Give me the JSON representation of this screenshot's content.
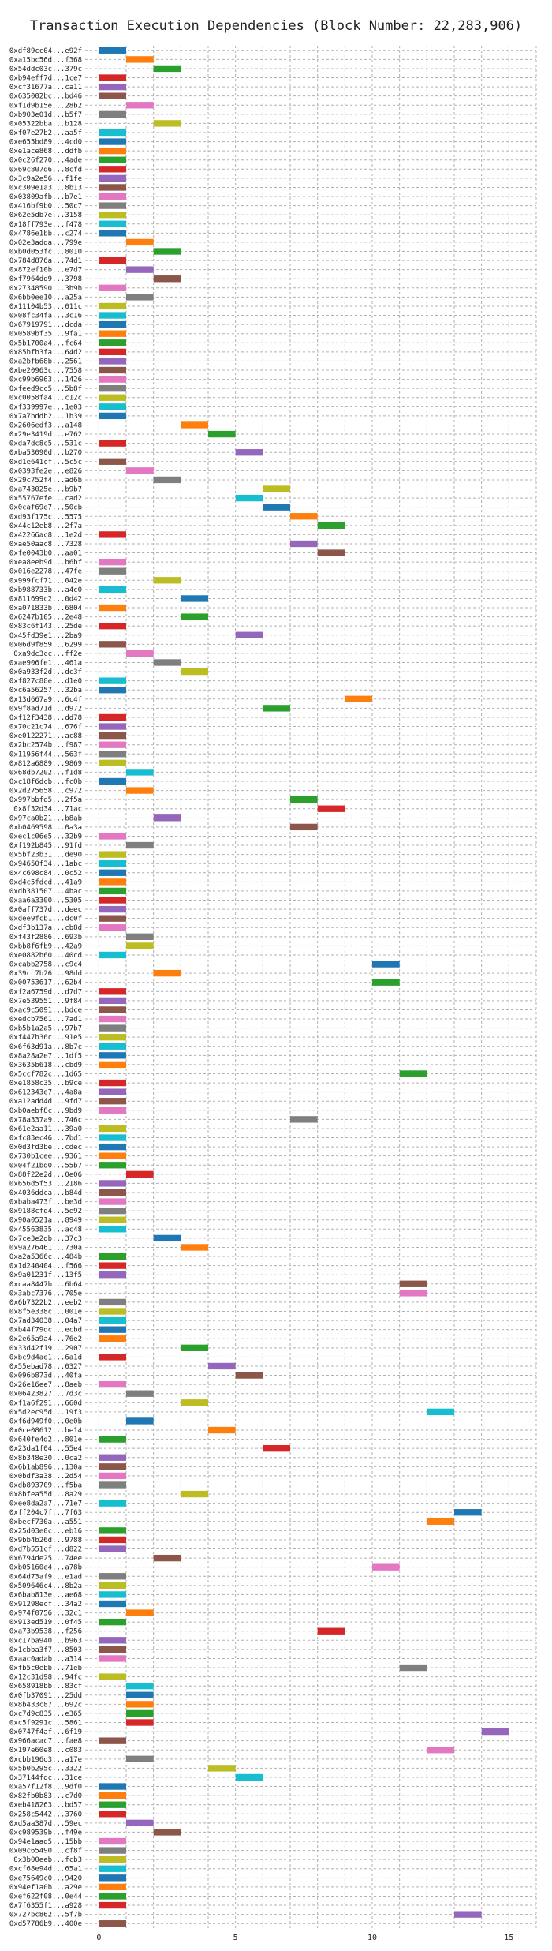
{
  "chart_data": {
    "type": "bar",
    "title": "Transaction Execution Dependencies (Block Number: 22,283,906)",
    "xlabel": "",
    "ylabel": "",
    "xlim": [
      -0.5,
      16
    ],
    "xticks": [
      0,
      5,
      10,
      15
    ],
    "grid": true,
    "bar_colors": [
      "#1f77b4",
      "#ff7f0e",
      "#2ca02c",
      "#d62728",
      "#9467bd",
      "#8c564b",
      "#e377c2",
      "#7f7f7f",
      "#bcbd22",
      "#17becf"
    ],
    "transactions": [
      {
        "hash": "0xdf89cc04...e92f",
        "start": 0,
        "end": 1
      },
      {
        "hash": "0xa15bc56d...f368",
        "start": 1,
        "end": 2
      },
      {
        "hash": "0x54ddc03c...379c",
        "start": 2,
        "end": 3
      },
      {
        "hash": "0xb94eff7d...1ce7",
        "start": 0,
        "end": 1
      },
      {
        "hash": "0xcf31677a...ca11",
        "start": 0,
        "end": 1
      },
      {
        "hash": "0x635002bc...bd46",
        "start": 0,
        "end": 1
      },
      {
        "hash": "0xf1d9b15e...28b2",
        "start": 1,
        "end": 2
      },
      {
        "hash": "0xb903e01d...b5f7",
        "start": 0,
        "end": 1
      },
      {
        "hash": "0x05322bba...b128",
        "start": 2,
        "end": 3
      },
      {
        "hash": "0xf07e27b2...aa5f",
        "start": 0,
        "end": 1
      },
      {
        "hash": "0xe655bd89...4cd0",
        "start": 0,
        "end": 1
      },
      {
        "hash": "0xe1ace868...ddfb",
        "start": 0,
        "end": 1
      },
      {
        "hash": "0x0c26f270...4ade",
        "start": 0,
        "end": 1
      },
      {
        "hash": "0x69c807d6...8cfd",
        "start": 0,
        "end": 1
      },
      {
        "hash": "0x3c9a2e56...f1fe",
        "start": 0,
        "end": 1
      },
      {
        "hash": "0xc309e1a3...8b13",
        "start": 0,
        "end": 1
      },
      {
        "hash": "0x03809afb...b7e1",
        "start": 0,
        "end": 1
      },
      {
        "hash": "0x416bf9b0...50c7",
        "start": 0,
        "end": 1
      },
      {
        "hash": "0x62e5db7e...3158",
        "start": 0,
        "end": 1
      },
      {
        "hash": "0x18ff793e...f478",
        "start": 0,
        "end": 1
      },
      {
        "hash": "0x4786e1bb...c274",
        "start": 0,
        "end": 1
      },
      {
        "hash": "0x02e3adda...799e",
        "start": 1,
        "end": 2
      },
      {
        "hash": "0xb0d053fc...8010",
        "start": 2,
        "end": 3
      },
      {
        "hash": "0x784d876a...74d1",
        "start": 0,
        "end": 1
      },
      {
        "hash": "0x872ef10b...e7d7",
        "start": 1,
        "end": 2
      },
      {
        "hash": "0xf7964dd9...3798",
        "start": 2,
        "end": 3
      },
      {
        "hash": "0x27348590...3b9b",
        "start": 0,
        "end": 1
      },
      {
        "hash": "0x6bb0ee10...a25a",
        "start": 1,
        "end": 2
      },
      {
        "hash": "0x11104b53...011c",
        "start": 0,
        "end": 1
      },
      {
        "hash": "0x08fc34fa...3c16",
        "start": 0,
        "end": 1
      },
      {
        "hash": "0x67919791...dcda",
        "start": 0,
        "end": 1
      },
      {
        "hash": "0x0589bf35...9fa1",
        "start": 0,
        "end": 1
      },
      {
        "hash": "0x5b1700a4...fc64",
        "start": 0,
        "end": 1
      },
      {
        "hash": "0x85bfb3fa...64d2",
        "start": 0,
        "end": 1
      },
      {
        "hash": "0xa2bfb68b...2561",
        "start": 0,
        "end": 1
      },
      {
        "hash": "0xbe20963c...7558",
        "start": 0,
        "end": 1
      },
      {
        "hash": "0xc99b6963...1426",
        "start": 0,
        "end": 1
      },
      {
        "hash": "0xfeed9cc5...5b8f",
        "start": 0,
        "end": 1
      },
      {
        "hash": "0xc0058fa4...c12c",
        "start": 0,
        "end": 1
      },
      {
        "hash": "0xf339997e...1e03",
        "start": 0,
        "end": 1
      },
      {
        "hash": "0x7a7bddb2...1b39",
        "start": 0,
        "end": 1
      },
      {
        "hash": "0x2606edf3...a148",
        "start": 3,
        "end": 4
      },
      {
        "hash": "0x29e3419d...e762",
        "start": 4,
        "end": 5
      },
      {
        "hash": "0xda7dc8c5...531c",
        "start": 0,
        "end": 1
      },
      {
        "hash": "0xba53090d...b270",
        "start": 5,
        "end": 6
      },
      {
        "hash": "0xd1e641cf...5c5c",
        "start": 0,
        "end": 1
      },
      {
        "hash": "0x0393fe2e...e826",
        "start": 1,
        "end": 2
      },
      {
        "hash": "0x29c752f4...ad6b",
        "start": 2,
        "end": 3
      },
      {
        "hash": "0xa743025e...b9b7",
        "start": 6,
        "end": 7
      },
      {
        "hash": "0x55767efe...cad2",
        "start": 5,
        "end": 6
      },
      {
        "hash": "0x0caf69e7...50cb",
        "start": 6,
        "end": 7
      },
      {
        "hash": "0xd93f175c...5575",
        "start": 7,
        "end": 8
      },
      {
        "hash": "0x44c12eb8...2f7a",
        "start": 8,
        "end": 9
      },
      {
        "hash": "0x42266ac8...1e2d",
        "start": 0,
        "end": 1
      },
      {
        "hash": "0xae50aac8...7328",
        "start": 7,
        "end": 8
      },
      {
        "hash": "0xfe0043b0...aa01",
        "start": 8,
        "end": 9
      },
      {
        "hash": "0xea8eeb9d...b6bf",
        "start": 0,
        "end": 1
      },
      {
        "hash": "0x016e2278...47fe",
        "start": 0,
        "end": 1
      },
      {
        "hash": "0x999fcf71...042e",
        "start": 2,
        "end": 3
      },
      {
        "hash": "0xb988733b...a4c0",
        "start": 0,
        "end": 1
      },
      {
        "hash": "0x811699c2...0d42",
        "start": 3,
        "end": 4
      },
      {
        "hash": "0xa071833b...6804",
        "start": 0,
        "end": 1
      },
      {
        "hash": "0x6247b105...2e48",
        "start": 3,
        "end": 4
      },
      {
        "hash": "0x83c6f143...25de",
        "start": 0,
        "end": 1
      },
      {
        "hash": "0x45fd39e1...2ba9",
        "start": 5,
        "end": 6
      },
      {
        "hash": "0x06d9f859...6299",
        "start": 0,
        "end": 1
      },
      {
        "hash": "0xa9dc3cc...ff2e",
        "start": 1,
        "end": 2
      },
      {
        "hash": "0xae906fe1...461a",
        "start": 2,
        "end": 3
      },
      {
        "hash": "0x0a933f2d...dc3f",
        "start": 3,
        "end": 4
      },
      {
        "hash": "0xf827c88e...d1e0",
        "start": 0,
        "end": 1
      },
      {
        "hash": "0xc6a56257...32ba",
        "start": 0,
        "end": 1
      },
      {
        "hash": "0x13d667a9...6c4f",
        "start": 9,
        "end": 10
      },
      {
        "hash": "0x9f8ad71d...d972",
        "start": 6,
        "end": 7
      },
      {
        "hash": "0xf12f3438...dd78",
        "start": 0,
        "end": 1
      },
      {
        "hash": "0x70c21c74...676f",
        "start": 0,
        "end": 1
      },
      {
        "hash": "0xe0122271...ac88",
        "start": 0,
        "end": 1
      },
      {
        "hash": "0x2bc2574b...f987",
        "start": 0,
        "end": 1
      },
      {
        "hash": "0x11956f44...563f",
        "start": 0,
        "end": 1
      },
      {
        "hash": "0x812a6889...9869",
        "start": 0,
        "end": 1
      },
      {
        "hash": "0x68db7202...f1d8",
        "start": 1,
        "end": 2
      },
      {
        "hash": "0xc18f6dcb...fc0b",
        "start": 0,
        "end": 1
      },
      {
        "hash": "0x2d275658...c972",
        "start": 1,
        "end": 2
      },
      {
        "hash": "0x997bbfd5...2f5a",
        "start": 7,
        "end": 8
      },
      {
        "hash": "0x8f32d34...71ac",
        "start": 8,
        "end": 9
      },
      {
        "hash": "0x97ca0b21...b8ab",
        "start": 2,
        "end": 3
      },
      {
        "hash": "0xb0469598...0a3a",
        "start": 7,
        "end": 8
      },
      {
        "hash": "0xec1c06e5...32b9",
        "start": 0,
        "end": 1
      },
      {
        "hash": "0xf192b845...91fd",
        "start": 1,
        "end": 2
      },
      {
        "hash": "0x5bf23b31...de90",
        "start": 0,
        "end": 1
      },
      {
        "hash": "0x94650f34...1abc",
        "start": 0,
        "end": 1
      },
      {
        "hash": "0x4c698c84...0c52",
        "start": 0,
        "end": 1
      },
      {
        "hash": "0xd4c5fdcd...41a9",
        "start": 0,
        "end": 1
      },
      {
        "hash": "0xdb381507...4bac",
        "start": 0,
        "end": 1
      },
      {
        "hash": "0xaa6a3300...5305",
        "start": 0,
        "end": 1
      },
      {
        "hash": "0x0aff737d...deec",
        "start": 0,
        "end": 1
      },
      {
        "hash": "0xdee9fcb1...dc0f",
        "start": 0,
        "end": 1
      },
      {
        "hash": "0xdf3b137a...cb8d",
        "start": 0,
        "end": 1
      },
      {
        "hash": "0xf43f2886...693b",
        "start": 1,
        "end": 2
      },
      {
        "hash": "0xbb8f6fb9...42a9",
        "start": 1,
        "end": 2
      },
      {
        "hash": "0xe0882b60...40cd",
        "start": 0,
        "end": 1
      },
      {
        "hash": "0xcabb2758...c9c4",
        "start": 10,
        "end": 11
      },
      {
        "hash": "0x39cc7b26...98dd",
        "start": 2,
        "end": 3
      },
      {
        "hash": "0x00753617...62b4",
        "start": 10,
        "end": 11
      },
      {
        "hash": "0xf2a6759d...d7d7",
        "start": 0,
        "end": 1
      },
      {
        "hash": "0x7e539551...9f84",
        "start": 0,
        "end": 1
      },
      {
        "hash": "0xac9c5091...bdce",
        "start": 0,
        "end": 1
      },
      {
        "hash": "0xedcb7561...7ad1",
        "start": 0,
        "end": 1
      },
      {
        "hash": "0xb5b1a2a5...97b7",
        "start": 0,
        "end": 1
      },
      {
        "hash": "0xf447b36c...91e5",
        "start": 0,
        "end": 1
      },
      {
        "hash": "0x6f63d91a...8b7c",
        "start": 0,
        "end": 1
      },
      {
        "hash": "0x8a28a2e7...1df5",
        "start": 0,
        "end": 1
      },
      {
        "hash": "0x3635b618...cbd9",
        "start": 0,
        "end": 1
      },
      {
        "hash": "0x5ccf782c...1d65",
        "start": 11,
        "end": 12
      },
      {
        "hash": "0xe1858c35...b9ce",
        "start": 0,
        "end": 1
      },
      {
        "hash": "0x612343e7...4a8a",
        "start": 0,
        "end": 1
      },
      {
        "hash": "0xa12add4d...9fd7",
        "start": 0,
        "end": 1
      },
      {
        "hash": "0xb0aebf8c...9bd9",
        "start": 0,
        "end": 1
      },
      {
        "hash": "0x78a337a9...746c",
        "start": 7,
        "end": 8
      },
      {
        "hash": "0x61e2aa11...39a0",
        "start": 0,
        "end": 1
      },
      {
        "hash": "0xfc83ec46...7bd1",
        "start": 0,
        "end": 1
      },
      {
        "hash": "0x0d3fd3be...cdec",
        "start": 0,
        "end": 1
      },
      {
        "hash": "0x730b1cee...9361",
        "start": 0,
        "end": 1
      },
      {
        "hash": "0x04f21bd0...55b7",
        "start": 0,
        "end": 1
      },
      {
        "hash": "0x88f22e2d...0e06",
        "start": 1,
        "end": 2
      },
      {
        "hash": "0x656d5f53...2186",
        "start": 0,
        "end": 1
      },
      {
        "hash": "0x4036ddca...b84d",
        "start": 0,
        "end": 1
      },
      {
        "hash": "0xbaba473f...be3d",
        "start": 0,
        "end": 1
      },
      {
        "hash": "0x9188cfd4...5e92",
        "start": 0,
        "end": 1
      },
      {
        "hash": "0x90a0521a...8949",
        "start": 0,
        "end": 1
      },
      {
        "hash": "0x45563835...ac48",
        "start": 0,
        "end": 1
      },
      {
        "hash": "0x7ce3e2db...37c3",
        "start": 2,
        "end": 3
      },
      {
        "hash": "0x9a276461...730a",
        "start": 3,
        "end": 4
      },
      {
        "hash": "0xa2a5366c...484b",
        "start": 0,
        "end": 1
      },
      {
        "hash": "0x1d240404...f566",
        "start": 0,
        "end": 1
      },
      {
        "hash": "0x9a01231f...13f5",
        "start": 0,
        "end": 1
      },
      {
        "hash": "0xcaa8447b...6b64",
        "start": 11,
        "end": 12
      },
      {
        "hash": "0x3abc7376...705e",
        "start": 11,
        "end": 12
      },
      {
        "hash": "0x6b7322b2...eeb2",
        "start": 0,
        "end": 1
      },
      {
        "hash": "0x8f5e338c...001e",
        "start": 0,
        "end": 1
      },
      {
        "hash": "0x7ad34038...04a7",
        "start": 0,
        "end": 1
      },
      {
        "hash": "0xb44f79dc...ecbd",
        "start": 0,
        "end": 1
      },
      {
        "hash": "0x2e65a9a4...76e2",
        "start": 0,
        "end": 1
      },
      {
        "hash": "0x33d42f19...2907",
        "start": 3,
        "end": 4
      },
      {
        "hash": "0xbc9d4ae1...6a1d",
        "start": 0,
        "end": 1
      },
      {
        "hash": "0x55ebad78...0327",
        "start": 4,
        "end": 5
      },
      {
        "hash": "0x096b873d...40fa",
        "start": 5,
        "end": 6
      },
      {
        "hash": "0x26e16ee7...8aeb",
        "start": 0,
        "end": 1
      },
      {
        "hash": "0x06423827...7d3c",
        "start": 1,
        "end": 2
      },
      {
        "hash": "0xf1a6f291...660d",
        "start": 3,
        "end": 4
      },
      {
        "hash": "0x5d2ec95d...19f3",
        "start": 12,
        "end": 13
      },
      {
        "hash": "0xf6d949f0...0e0b",
        "start": 1,
        "end": 2
      },
      {
        "hash": "0x0ce08612...be14",
        "start": 4,
        "end": 5
      },
      {
        "hash": "0x640fe4d2...801e",
        "start": 0,
        "end": 1
      },
      {
        "hash": "0x23da1f04...55e4",
        "start": 6,
        "end": 7
      },
      {
        "hash": "0x8b348e30...0ca2",
        "start": 0,
        "end": 1
      },
      {
        "hash": "0x6b1ab896...130a",
        "start": 0,
        "end": 1
      },
      {
        "hash": "0x0bdf3a38...2d54",
        "start": 0,
        "end": 1
      },
      {
        "hash": "0xdb893709...f5ba",
        "start": 0,
        "end": 1
      },
      {
        "hash": "0x8bfea55d...8a29",
        "start": 3,
        "end": 4
      },
      {
        "hash": "0xee8da2a7...71e7",
        "start": 0,
        "end": 1
      },
      {
        "hash": "0xff204c7f...7f63",
        "start": 13,
        "end": 14
      },
      {
        "hash": "0xbecf730a...a551",
        "start": 12,
        "end": 13
      },
      {
        "hash": "0x25d03e0c...eb16",
        "start": 0,
        "end": 1
      },
      {
        "hash": "0x9bb4b26d...9788",
        "start": 0,
        "end": 1
      },
      {
        "hash": "0xd7b551cf...d822",
        "start": 0,
        "end": 1
      },
      {
        "hash": "0x6794de25...74ee",
        "start": 2,
        "end": 3
      },
      {
        "hash": "0xb05160e4...a78b",
        "start": 10,
        "end": 11
      },
      {
        "hash": "0x64d73af9...e1ad",
        "start": 0,
        "end": 1
      },
      {
        "hash": "0x509646c4...8b2a",
        "start": 0,
        "end": 1
      },
      {
        "hash": "0x6bab813e...ae68",
        "start": 0,
        "end": 1
      },
      {
        "hash": "0x91298ecf...34a2",
        "start": 0,
        "end": 1
      },
      {
        "hash": "0x974f0756...32c1",
        "start": 1,
        "end": 2
      },
      {
        "hash": "0x913ed519...0f45",
        "start": 0,
        "end": 1
      },
      {
        "hash": "0xa73b9538...f256",
        "start": 8,
        "end": 9
      },
      {
        "hash": "0xc17ba940...b963",
        "start": 0,
        "end": 1
      },
      {
        "hash": "0x1cbba3f7...8503",
        "start": 0,
        "end": 1
      },
      {
        "hash": "0xaac0adab...a314",
        "start": 0,
        "end": 1
      },
      {
        "hash": "0xfb5c0ebb...71eb",
        "start": 11,
        "end": 12
      },
      {
        "hash": "0x12c31d98...94fc",
        "start": 0,
        "end": 1
      },
      {
        "hash": "0x658918bb...83cf",
        "start": 1,
        "end": 2
      },
      {
        "hash": "0x0fb37091...25dd",
        "start": 1,
        "end": 2
      },
      {
        "hash": "0x8b433c87...692c",
        "start": 1,
        "end": 2
      },
      {
        "hash": "0xc7d9c835...e365",
        "start": 1,
        "end": 2
      },
      {
        "hash": "0xc5f9291c...5861",
        "start": 1,
        "end": 2
      },
      {
        "hash": "0x0747f4af...6f19",
        "start": 14,
        "end": 15
      },
      {
        "hash": "0x966acac7...fae8",
        "start": 0,
        "end": 1
      },
      {
        "hash": "0x197e60e8...c083",
        "start": 12,
        "end": 13
      },
      {
        "hash": "0xcbb196d3...a17e",
        "start": 1,
        "end": 2
      },
      {
        "hash": "0x5b0b295c...3322",
        "start": 4,
        "end": 5
      },
      {
        "hash": "0x37144fdc...31ce",
        "start": 5,
        "end": 6
      },
      {
        "hash": "0xa57f12f8...9df0",
        "start": 0,
        "end": 1
      },
      {
        "hash": "0x82fb0b83...c7d0",
        "start": 0,
        "end": 1
      },
      {
        "hash": "0xeb418263...bd57",
        "start": 0,
        "end": 1
      },
      {
        "hash": "0x258c5442...3760",
        "start": 0,
        "end": 1
      },
      {
        "hash": "0xd5aa387d...59ec",
        "start": 1,
        "end": 2
      },
      {
        "hash": "0xc989539b...f49e",
        "start": 2,
        "end": 3
      },
      {
        "hash": "0x94e1aad5...15bb",
        "start": 0,
        "end": 1
      },
      {
        "hash": "0x09c65490...cf8f",
        "start": 0,
        "end": 1
      },
      {
        "hash": "0x3b00eeb...fcb3",
        "start": 0,
        "end": 1
      },
      {
        "hash": "0xcf68e94d...65a1",
        "start": 0,
        "end": 1
      },
      {
        "hash": "0xe75649c0...9420",
        "start": 0,
        "end": 1
      },
      {
        "hash": "0x94ef1a0b...a29e",
        "start": 0,
        "end": 1
      },
      {
        "hash": "0xef622f08...0e44",
        "start": 0,
        "end": 1
      },
      {
        "hash": "0x7f6355f1...a928",
        "start": 0,
        "end": 1
      },
      {
        "hash": "0x727bc862...5f7b",
        "start": 13,
        "end": 14
      },
      {
        "hash": "0xd57786b9...400e",
        "start": 0,
        "end": 1
      }
    ]
  }
}
